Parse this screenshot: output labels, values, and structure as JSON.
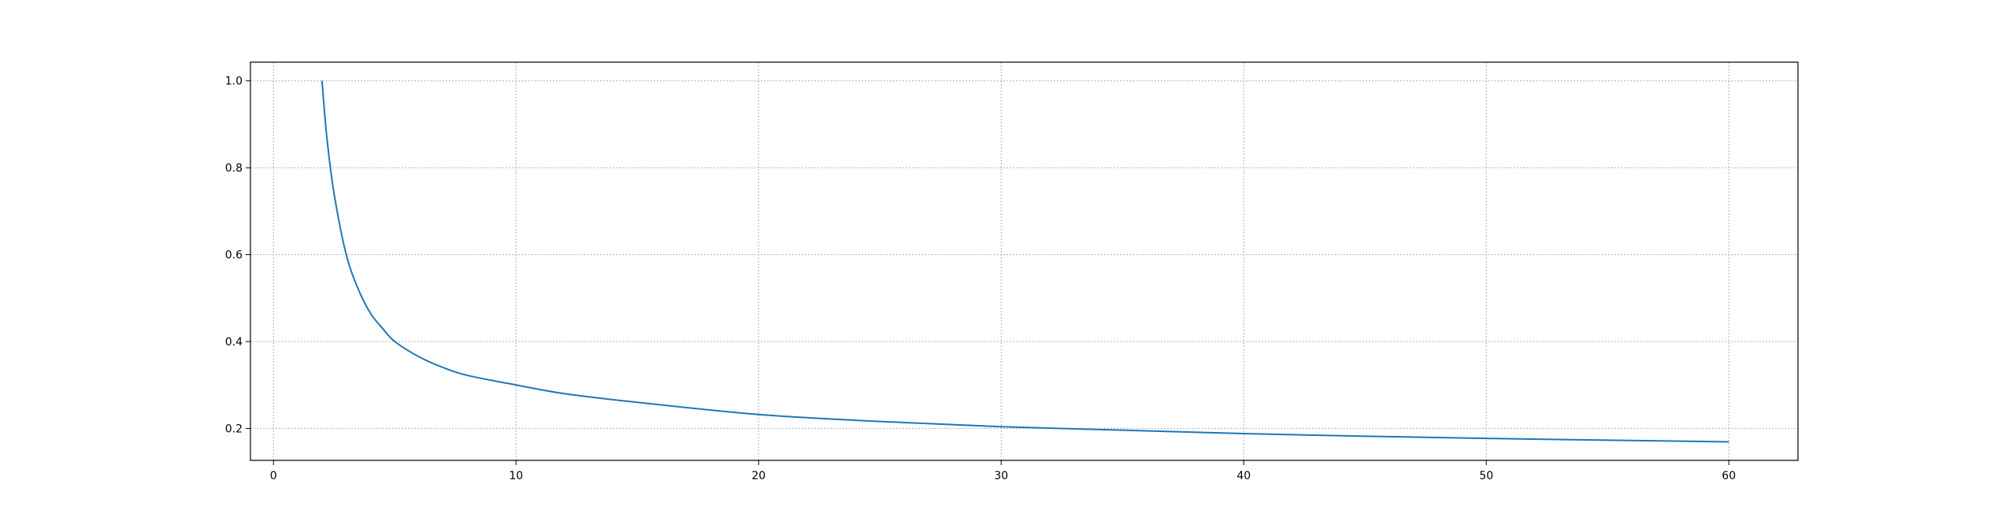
{
  "chart_data": {
    "type": "line",
    "title": "",
    "xlabel": "",
    "ylabel": "",
    "xlim": [
      -0.95,
      62.85
    ],
    "ylim": [
      0.1265,
      1.043
    ],
    "grid": true,
    "x_ticks": [
      0,
      10,
      20,
      30,
      40,
      50,
      60
    ],
    "x_tick_labels": [
      "0",
      "10",
      "20",
      "30",
      "40",
      "50",
      "60"
    ],
    "y_ticks": [
      0.2,
      0.4,
      0.6,
      0.8,
      1.0
    ],
    "y_tick_labels": [
      "0.2",
      "0.4",
      "0.6",
      "0.8",
      "1.0"
    ],
    "series": [
      {
        "color": "#1f77b4",
        "x": [
          2,
          2.2,
          2.5,
          3,
          3.5,
          4,
          4.5,
          5,
          6,
          7,
          8,
          10,
          12,
          15,
          20,
          25,
          30,
          35,
          40,
          45,
          50,
          55,
          60
        ],
        "y": [
          1.0,
          0.87,
          0.74,
          0.6,
          0.52,
          0.465,
          0.43,
          0.4,
          0.365,
          0.34,
          0.322,
          0.3,
          0.28,
          0.26,
          0.232,
          0.216,
          0.204,
          0.196,
          0.188,
          0.182,
          0.177,
          0.173,
          0.169
        ]
      }
    ]
  }
}
